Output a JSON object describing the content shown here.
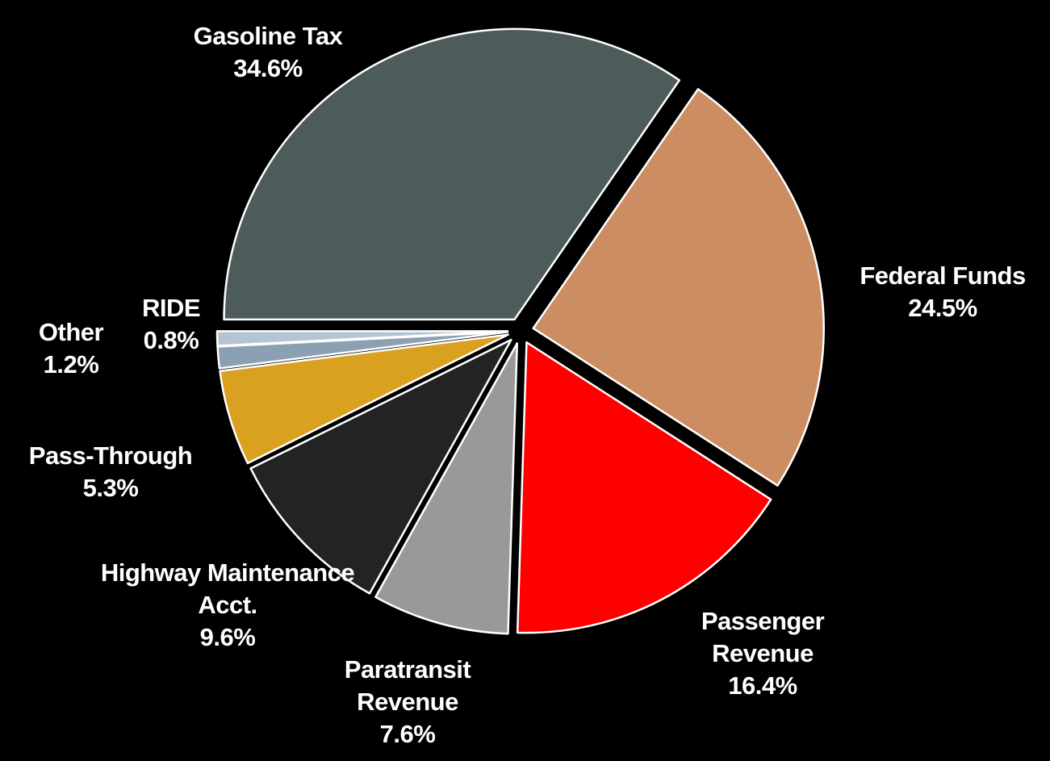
{
  "chart_data": {
    "type": "pie",
    "categories": [
      "Gasoline Tax",
      "Federal Funds",
      "Passenger Revenue",
      "Paratransit Revenue",
      "Highway Maintenance Acct.",
      "Pass-Through",
      "Other",
      "RIDE"
    ],
    "values": [
      34.6,
      24.5,
      16.4,
      7.6,
      9.6,
      5.3,
      1.2,
      0.8
    ],
    "value_labels": [
      "34.6%",
      "24.5%",
      "16.4%",
      "7.6%",
      "9.6%",
      "5.3%",
      "1.2%",
      "0.8%"
    ],
    "colors": [
      "#4d5b5b",
      "#cd8d63",
      "#ff0000",
      "#999999",
      "#222324",
      "#daa020",
      "#8ca0b4",
      "#b4c4d4"
    ]
  }
}
